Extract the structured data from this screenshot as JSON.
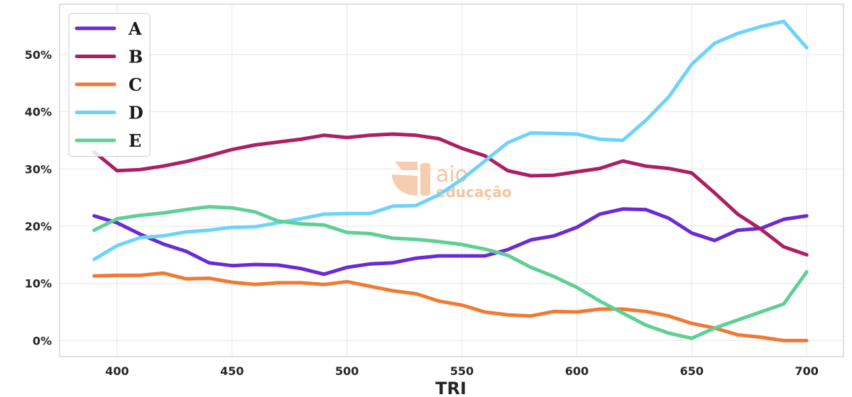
{
  "chart_data": {
    "type": "line",
    "xlabel": "TRI",
    "ylabel": "",
    "xlim": [
      375,
      716
    ],
    "ylim": [
      -2.8,
      58.8
    ],
    "x_ticks": [
      400,
      450,
      500,
      550,
      600,
      650,
      700
    ],
    "x_tick_labels": [
      "400",
      "450",
      "500",
      "550",
      "600",
      "650",
      "700"
    ],
    "y_ticks": [
      0,
      10,
      20,
      30,
      40,
      50
    ],
    "y_tick_labels": [
      "0%",
      "10%",
      "20%",
      "30%",
      "40%",
      "50%"
    ],
    "grid": true,
    "legend_position": "top-left",
    "x": [
      390,
      400,
      410,
      420,
      430,
      440,
      450,
      460,
      470,
      480,
      490,
      500,
      510,
      520,
      530,
      540,
      550,
      560,
      570,
      580,
      590,
      600,
      610,
      620,
      630,
      640,
      650,
      660,
      670,
      680,
      690,
      700
    ],
    "series": [
      {
        "name": "A",
        "color": "#6a2ad4",
        "values": [
          21.8,
          20.6,
          18.6,
          16.9,
          15.6,
          13.6,
          13.1,
          13.3,
          13.2,
          12.6,
          11.6,
          12.8,
          13.4,
          13.6,
          14.4,
          14.8,
          14.8,
          14.8,
          15.9,
          17.6,
          18.3,
          19.8,
          22.1,
          23.0,
          22.9,
          21.4,
          18.8,
          17.5,
          19.3,
          19.6,
          21.2,
          21.8
        ]
      },
      {
        "name": "B",
        "color": "#ad1f64",
        "values": [
          33.0,
          29.7,
          29.9,
          30.5,
          31.3,
          32.3,
          33.4,
          34.2,
          34.7,
          35.2,
          35.9,
          35.5,
          35.9,
          36.1,
          35.9,
          35.3,
          33.6,
          32.3,
          29.7,
          28.8,
          28.9,
          29.5,
          30.1,
          31.4,
          30.5,
          30.1,
          29.3,
          25.8,
          22.1,
          19.5,
          16.4,
          15.0
        ]
      },
      {
        "name": "C",
        "color": "#f07a33",
        "values": [
          11.3,
          11.4,
          11.4,
          11.8,
          10.8,
          10.9,
          10.2,
          9.8,
          10.1,
          10.1,
          9.8,
          10.3,
          9.5,
          8.7,
          8.2,
          6.9,
          6.2,
          5.0,
          4.5,
          4.3,
          5.1,
          5.0,
          5.5,
          5.5,
          5.1,
          4.3,
          3.0,
          2.2,
          1.0,
          0.6,
          0.0,
          0.0
        ]
      },
      {
        "name": "D",
        "color": "#6dd3fb",
        "values": [
          14.2,
          16.6,
          18.0,
          18.3,
          19.0,
          19.3,
          19.8,
          19.9,
          20.6,
          21.3,
          22.1,
          22.2,
          22.2,
          23.5,
          23.6,
          25.5,
          28.2,
          31.4,
          34.6,
          36.3,
          36.2,
          36.1,
          35.2,
          35.0,
          38.5,
          42.6,
          48.3,
          52.0,
          53.7,
          54.9,
          55.8,
          51.2
        ]
      },
      {
        "name": "E",
        "color": "#5fcf94",
        "values": [
          19.3,
          21.3,
          21.9,
          22.3,
          22.9,
          23.4,
          23.2,
          22.5,
          20.9,
          20.4,
          20.2,
          18.9,
          18.7,
          17.9,
          17.7,
          17.3,
          16.8,
          16.0,
          14.9,
          12.8,
          11.2,
          9.3,
          6.9,
          4.8,
          2.7,
          1.3,
          0.4,
          2.2,
          3.6,
          5.0,
          6.4,
          12.0
        ]
      }
    ]
  },
  "watermark": {
    "line1": "aio",
    "line2": "educação",
    "color": "#f4c4a0"
  }
}
